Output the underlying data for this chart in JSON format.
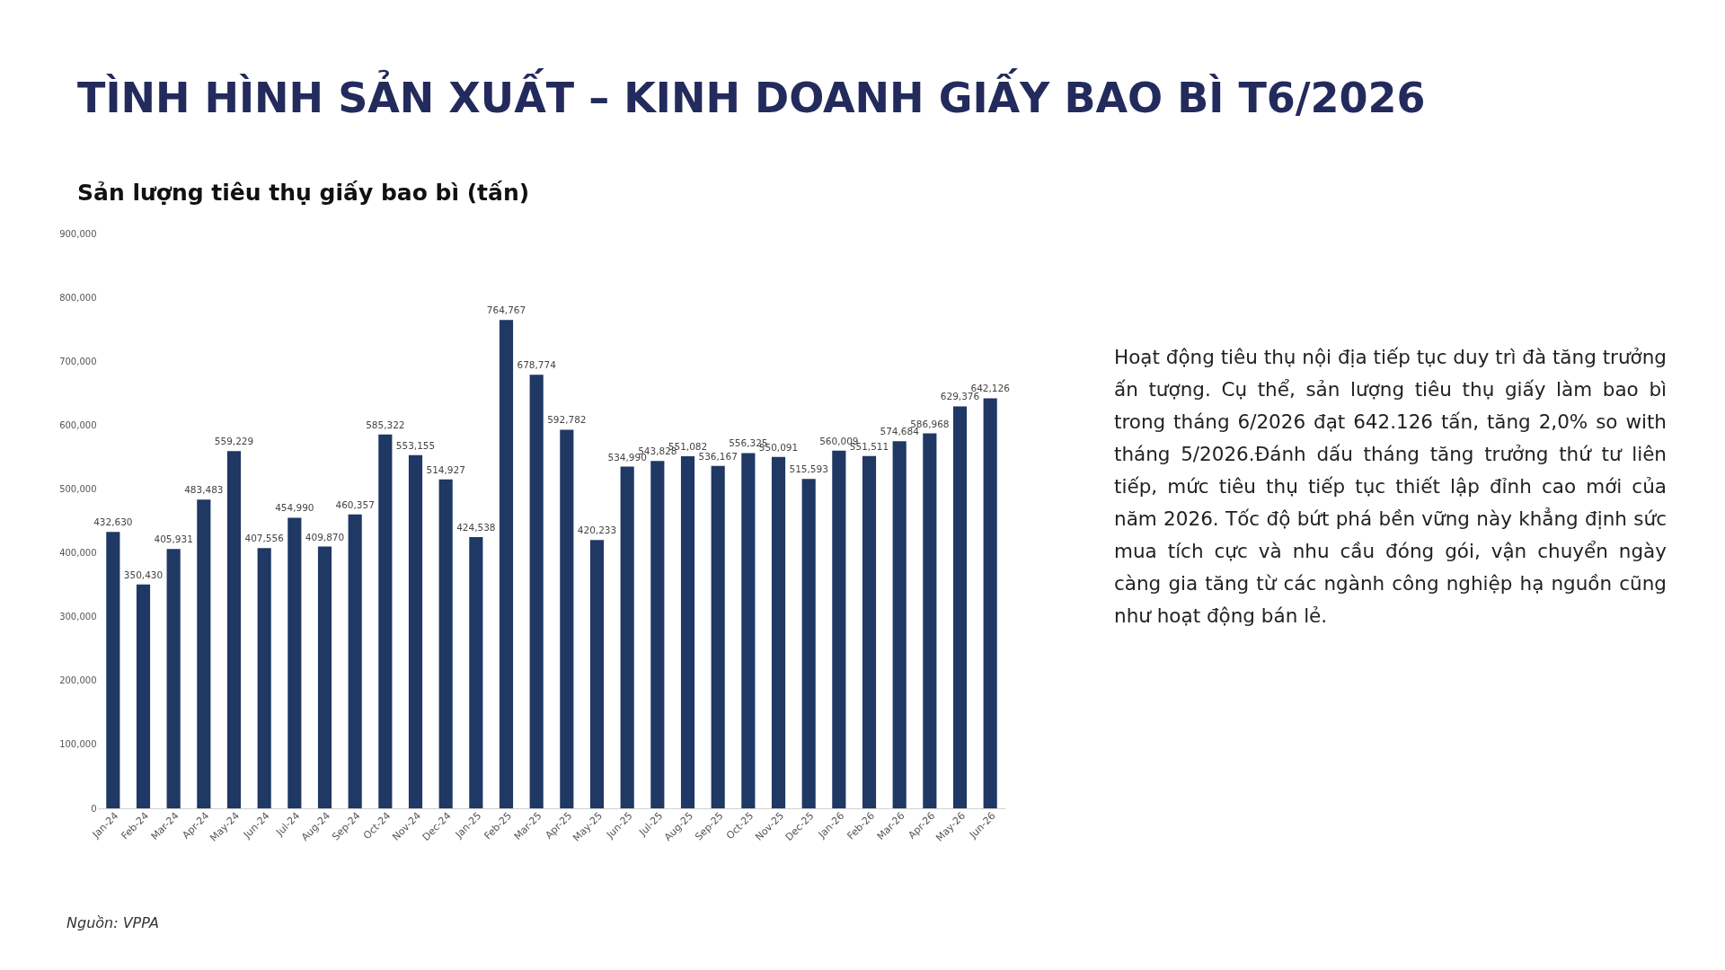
{
  "chart_data": {
    "type": "bar",
    "title": "TÌNH HÌNH SẢN XUẤT – KINH DOANH GIẤY BAO BÌ T6/2026",
    "subtitle": "Sản lượng tiêu thụ giấy bao bì (tấn)",
    "categories": [
      "Jan-24",
      "Feb-24",
      "Mar-24",
      "Apr-24",
      "May-24",
      "Jun-24",
      "Jul-24",
      "Aug-24",
      "Sep-24",
      "Oct-24",
      "Nov-24",
      "Dec-24",
      "Jan-25",
      "Feb-25",
      "Mar-25",
      "Apr-25",
      "May-25",
      "Jun-25",
      "Jul-25",
      "Aug-25",
      "Sep-25",
      "Oct-25",
      "Nov-25",
      "Dec-25",
      "Jan-26",
      "Feb-26",
      "Mar-26",
      "Apr-26",
      "May-26",
      "Jun-26"
    ],
    "values": [
      432630,
      350430,
      405931,
      483483,
      559229,
      407556,
      454990,
      409870,
      460357,
      585322,
      553155,
      514927,
      424538,
      764767,
      678774,
      592782,
      420233,
      534990,
      543828,
      551082,
      536167,
      556325,
      550091,
      515593,
      560009,
      551511,
      574684,
      586968,
      629376,
      642126
    ],
    "value_labels": [
      "432,630",
      "350,430",
      "405,931",
      "483,483",
      "559,229",
      "407,556",
      "454,990",
      "409,870",
      "460,357",
      "585,322",
      "553,155",
      "514,927",
      "424,538",
      "764,767",
      "678,774",
      "592,782",
      "420,233",
      "534,990",
      "543,828",
      "551,082",
      "536,167",
      "556,325",
      "550,091",
      "515,593",
      "560,009",
      "551,511",
      "574,684",
      "586,968",
      "629,376",
      "642,126"
    ],
    "color": "#1f3864",
    "grid": false,
    "ylim": [
      0,
      900000
    ],
    "yticks": [
      {
        "value": 0,
        "label": "0"
      },
      {
        "value": 100000,
        "label": "100,000"
      },
      {
        "value": 200000,
        "label": "200,000"
      },
      {
        "value": 300000,
        "label": "300,000"
      },
      {
        "value": 400000,
        "label": "400,000"
      },
      {
        "value": 500000,
        "label": "500,000"
      },
      {
        "value": 600000,
        "label": "600,000"
      },
      {
        "value": 700000,
        "label": "700,000"
      },
      {
        "value": 800000,
        "label": "800,000"
      },
      {
        "value": 900000,
        "label": "900,000"
      }
    ],
    "annotations": [
      "Hoạt động tiêu thụ nội địa tiếp tục duy trì đà tăng trưởng ấn tượng. Cụ thể, sản lượng tiêu thụ giấy làm bao bì trong tháng 6/2026 đạt 642.126 tấn, tăng 2,0% so with tháng 5/2026.Đánh dấu tháng tăng trưởng thứ tư liên tiếp, mức tiêu thụ tiếp tục thiết lập đỉnh cao mới của năm 2026. Tốc độ bứt phá bền vững này khẳng định sức mua tích cực và nhu cầu đóng gói, vận chuyển ngày càng gia tăng từ các ngành công nghiệp hạ nguồn cũng như hoạt động bán lẻ.",
      "Nguồn: VPPA"
    ]
  }
}
